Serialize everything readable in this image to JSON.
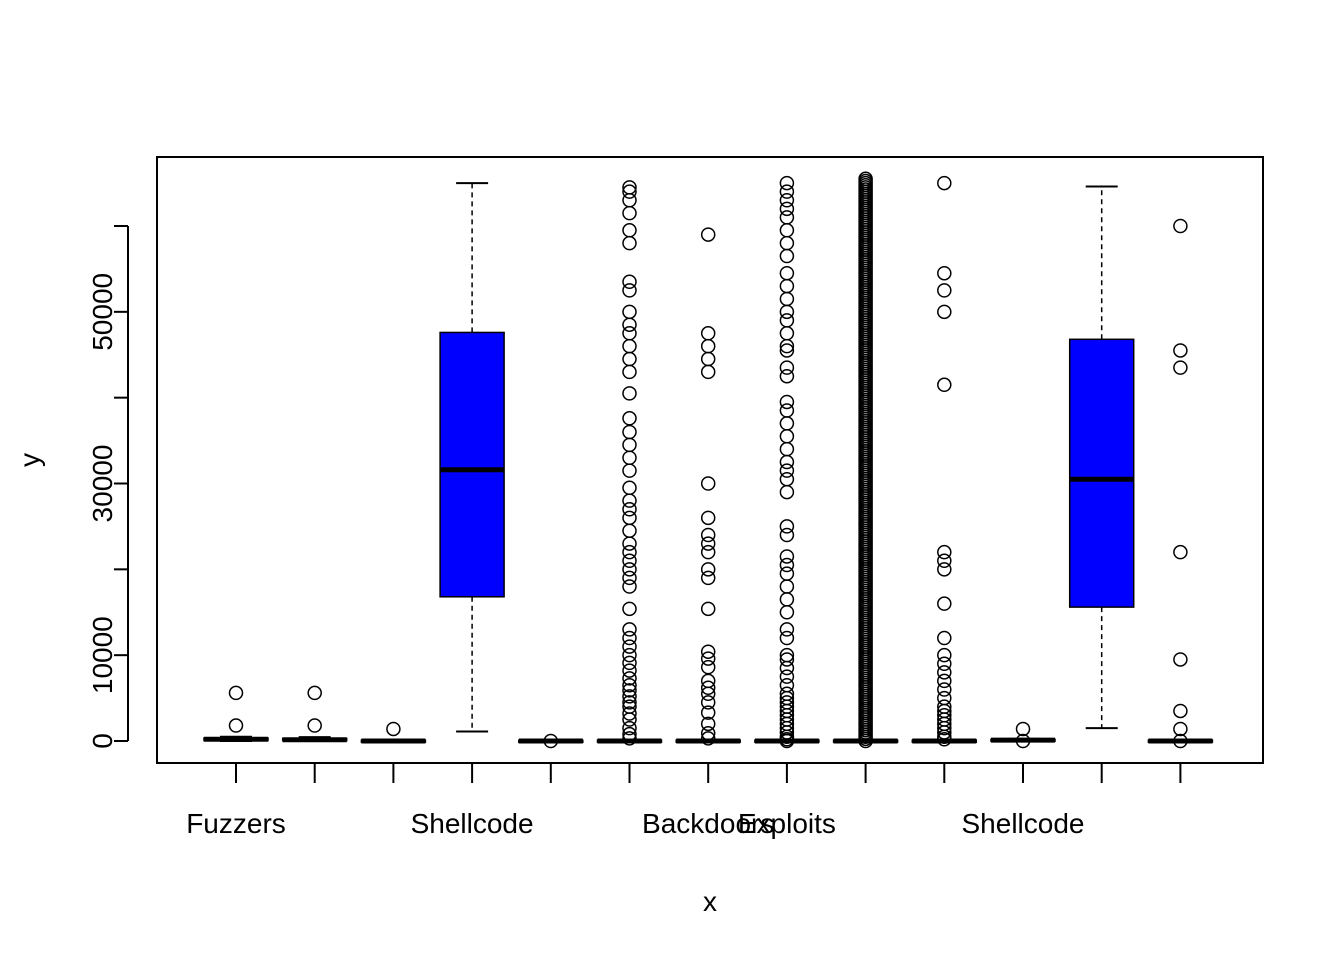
{
  "chart_data": {
    "type": "boxplot",
    "xlabel": "x",
    "ylabel": "y",
    "ylim": [
      -2500,
      68000
    ],
    "y_ticks": [
      {
        "value": 0,
        "label": "0"
      },
      {
        "value": 10000,
        "label": "10000"
      },
      {
        "value": 20000,
        "label": ""
      },
      {
        "value": 30000,
        "label": "30000"
      },
      {
        "value": 40000,
        "label": ""
      },
      {
        "value": 50000,
        "label": "50000"
      },
      {
        "value": 60000,
        "label": ""
      }
    ],
    "x_tick_labels": [
      {
        "position": 1,
        "label": "Fuzzers"
      },
      {
        "position": 4,
        "label": "Shellcode"
      },
      {
        "position": 7,
        "label": "Backdoors"
      },
      {
        "position": 8,
        "label": "Exploits"
      },
      {
        "position": 11,
        "label": "Shellcode"
      }
    ],
    "n_ticks": 13,
    "fill_color": "#0000ff",
    "boxes": [
      {
        "position": 1,
        "q1": 50,
        "median": 200,
        "q3": 350,
        "whisker_low": 0,
        "whisker_high": 500,
        "outliers": [
          1800,
          5600
        ]
      },
      {
        "position": 2,
        "q1": 40,
        "median": 150,
        "q3": 300,
        "whisker_low": 0,
        "whisker_high": 450,
        "outliers": [
          1800,
          5600
        ]
      },
      {
        "position": 3,
        "q1": 0,
        "median": 0,
        "q3": 100,
        "whisker_low": 0,
        "whisker_high": 150,
        "outliers": [
          1400
        ]
      },
      {
        "position": 4,
        "q1": 16800,
        "median": 31600,
        "q3": 47600,
        "whisker_low": 1100,
        "whisker_high": 65000,
        "outliers": []
      },
      {
        "position": 5,
        "q1": 0,
        "median": 0,
        "q3": 80,
        "whisker_low": 0,
        "whisker_high": 100,
        "outliers": [
          0
        ]
      },
      {
        "position": 6,
        "q1": 0,
        "median": 0,
        "q3": 100,
        "whisker_low": 0,
        "whisker_high": 150,
        "outliers": [
          300,
          800,
          1500,
          2500,
          3200,
          4000,
          4500,
          5200,
          5900,
          6500,
          7300,
          8200,
          9100,
          10000,
          11000,
          12000,
          13000,
          15400,
          18000,
          19000,
          20000,
          21000,
          22000,
          23000,
          24500,
          26000,
          27000,
          28000,
          29500,
          31500,
          33000,
          34500,
          36000,
          37600,
          40500,
          43000,
          44500,
          46000,
          47500,
          48500,
          50000,
          52500,
          53500,
          58000,
          59500,
          61500,
          63000,
          64000,
          64500
        ]
      },
      {
        "position": 7,
        "q1": 0,
        "median": 0,
        "q3": 100,
        "whisker_low": 0,
        "whisker_high": 150,
        "outliers": [
          300,
          900,
          2000,
          3300,
          4500,
          5500,
          6200,
          7000,
          8600,
          9600,
          10400,
          15400,
          19000,
          20000,
          22000,
          23000,
          24000,
          26000,
          30000,
          43000,
          44500,
          46000,
          47500,
          59000
        ]
      },
      {
        "position": 8,
        "q1": 0,
        "median": 0,
        "q3": 100,
        "whisker_low": 0,
        "whisker_high": 150,
        "outliers": [
          0,
          200,
          500,
          1000,
          1500,
          2000,
          2500,
          3000,
          3500,
          4000,
          4500,
          5000,
          5500,
          6500,
          7500,
          8500,
          9500,
          10000,
          12000,
          13000,
          15000,
          16500,
          18000,
          19500,
          20500,
          21500,
          24000,
          25000,
          29000,
          30500,
          31500,
          32500,
          34000,
          35500,
          37000,
          38500,
          39500,
          42500,
          43500,
          45500,
          46000,
          47500,
          49000,
          50000,
          51500,
          53000,
          54500,
          56500,
          58000,
          59500,
          61000,
          62000,
          63000,
          64000,
          65000
        ]
      },
      {
        "position": 9,
        "q1": 0,
        "median": 0,
        "q3": 100,
        "whisker_low": 0,
        "whisker_high": 150,
        "outliers": [],
        "dense_outliers": [
          0,
          65500
        ]
      },
      {
        "position": 10,
        "q1": 0,
        "median": 0,
        "q3": 100,
        "whisker_low": 0,
        "whisker_high": 150,
        "outliers": [
          200,
          500,
          1000,
          1500,
          2000,
          2500,
          3000,
          3500,
          4000,
          5000,
          6000,
          7000,
          8000,
          9000,
          10000,
          12000,
          16000,
          20000,
          21000,
          22000,
          41500,
          50000,
          52500,
          54500,
          65000
        ]
      },
      {
        "position": 11,
        "q1": 0,
        "median": 100,
        "q3": 200,
        "whisker_low": 0,
        "whisker_high": 250,
        "outliers": [
          0,
          1400
        ]
      },
      {
        "position": 12,
        "q1": 15600,
        "median": 30500,
        "q3": 46800,
        "whisker_low": 1500,
        "whisker_high": 64600,
        "outliers": []
      },
      {
        "position": 13,
        "q1": 0,
        "median": 0,
        "q3": 100,
        "whisker_low": 0,
        "whisker_high": 150,
        "outliers": [
          0,
          1400,
          3500,
          9500,
          22000,
          43500,
          45500,
          60000
        ]
      }
    ]
  }
}
